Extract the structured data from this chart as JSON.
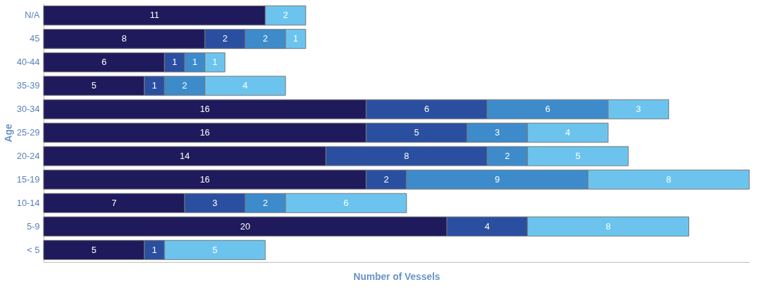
{
  "chart_data": {
    "type": "bar",
    "orientation": "horizontal",
    "stacked": true,
    "data_labels": true,
    "xlabel": "Number of Vessels",
    "ylabel": "Age",
    "tick_labels": "y",
    "grid": false,
    "categories": [
      "N/A",
      "45",
      "40-44",
      "35-39",
      "30-34",
      "25-29",
      "20-24",
      "15-19",
      "10-14",
      "5-9",
      "< 5"
    ],
    "series": [
      {
        "color": "#1f1a5c",
        "values": [
          11,
          8,
          6,
          5,
          16,
          16,
          14,
          16,
          7,
          20,
          5
        ]
      },
      {
        "color": "#2b4fa0",
        "values": [
          null,
          2,
          1,
          1,
          6,
          5,
          8,
          2,
          3,
          4,
          1
        ]
      },
      {
        "color": "#3d8bcb",
        "values": [
          null,
          2,
          1,
          2,
          6,
          3,
          2,
          9,
          2,
          null,
          null
        ]
      },
      {
        "color": "#6cc4ee",
        "values": [
          2,
          1,
          1,
          4,
          3,
          4,
          5,
          8,
          6,
          8,
          5
        ]
      }
    ]
  }
}
